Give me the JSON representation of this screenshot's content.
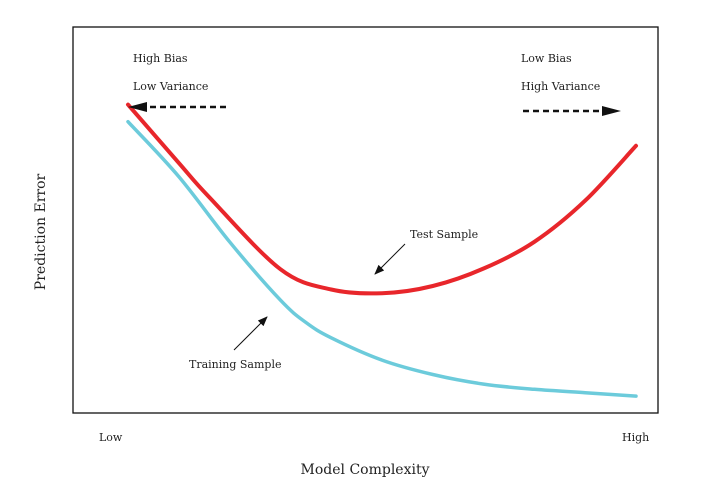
{
  "chart_data": {
    "type": "line",
    "title": "",
    "xlabel": "Model Complexity",
    "ylabel": "Prediction Error",
    "x_ticks": [
      "Low",
      "High"
    ],
    "grid": false,
    "xlim": [
      0,
      1
    ],
    "ylim": [
      0,
      1
    ],
    "series": [
      {
        "name": "Test Sample",
        "color": "#e8262b",
        "x": [
          0.0,
          0.1,
          0.16,
          0.3,
          0.4,
          0.5,
          0.6,
          0.7,
          0.8,
          0.9,
          1.0
        ],
        "y": [
          0.87,
          0.7,
          0.6,
          0.39,
          0.331,
          0.32,
          0.341,
          0.392,
          0.47,
          0.59,
          0.75
        ]
      },
      {
        "name": "Training Sample",
        "color": "#6ccbdb",
        "x": [
          0.0,
          0.1,
          0.2,
          0.3,
          0.35,
          0.4,
          0.5,
          0.6,
          0.7,
          0.8,
          0.9,
          1.0
        ],
        "y": [
          0.82,
          0.66,
          0.47,
          0.3,
          0.235,
          0.19,
          0.125,
          0.083,
          0.055,
          0.04,
          0.03,
          0.02
        ]
      }
    ],
    "annotations": {
      "left_line1": "High Bias",
      "left_line2": "Low Variance",
      "right_line1": "Low Bias",
      "right_line2": "High Variance",
      "test_label": "Test Sample",
      "train_label": "Training Sample"
    }
  }
}
